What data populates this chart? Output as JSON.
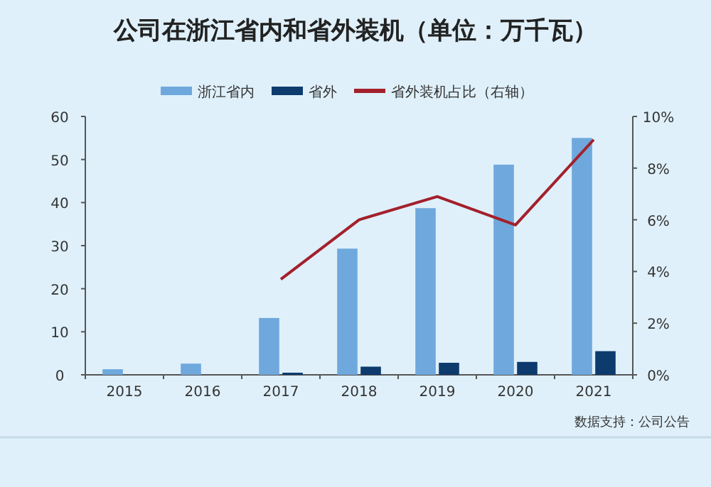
{
  "chart_data": {
    "type": "bar",
    "title": "公司在浙江省内和省外装机（单位：万千瓦）",
    "categories": [
      "2015",
      "2016",
      "2017",
      "2018",
      "2019",
      "2020",
      "2021"
    ],
    "series": [
      {
        "name": "浙江省内",
        "color": "#6fa8dc",
        "values": [
          1.3,
          2.6,
          13.2,
          29.3,
          38.7,
          48.8,
          55
        ]
      },
      {
        "name": "省外",
        "color": "#0d3b6e",
        "values": [
          null,
          null,
          0.5,
          1.9,
          2.8,
          3.0,
          5.5
        ]
      },
      {
        "name": "省外装机占比（右轴）",
        "type": "line",
        "axis": "y2",
        "color": "#a3202c",
        "values": [
          null,
          null,
          3.7,
          6.0,
          6.9,
          5.8,
          9.1
        ]
      }
    ],
    "ylim": [
      0,
      60
    ],
    "yticks": [
      0,
      10,
      20,
      30,
      40,
      50,
      60
    ],
    "y2lim": [
      0,
      10
    ],
    "y2ticks": [
      {
        "value": 0,
        "label": "0%"
      },
      {
        "value": 2,
        "label": "2%"
      },
      {
        "value": 4,
        "label": "4%"
      },
      {
        "value": 6,
        "label": "6%"
      },
      {
        "value": 8,
        "label": "8%"
      },
      {
        "value": 10,
        "label": "10%"
      }
    ],
    "grid": false,
    "legend": "top",
    "annotations": [
      "数据支持：公司公告"
    ]
  }
}
